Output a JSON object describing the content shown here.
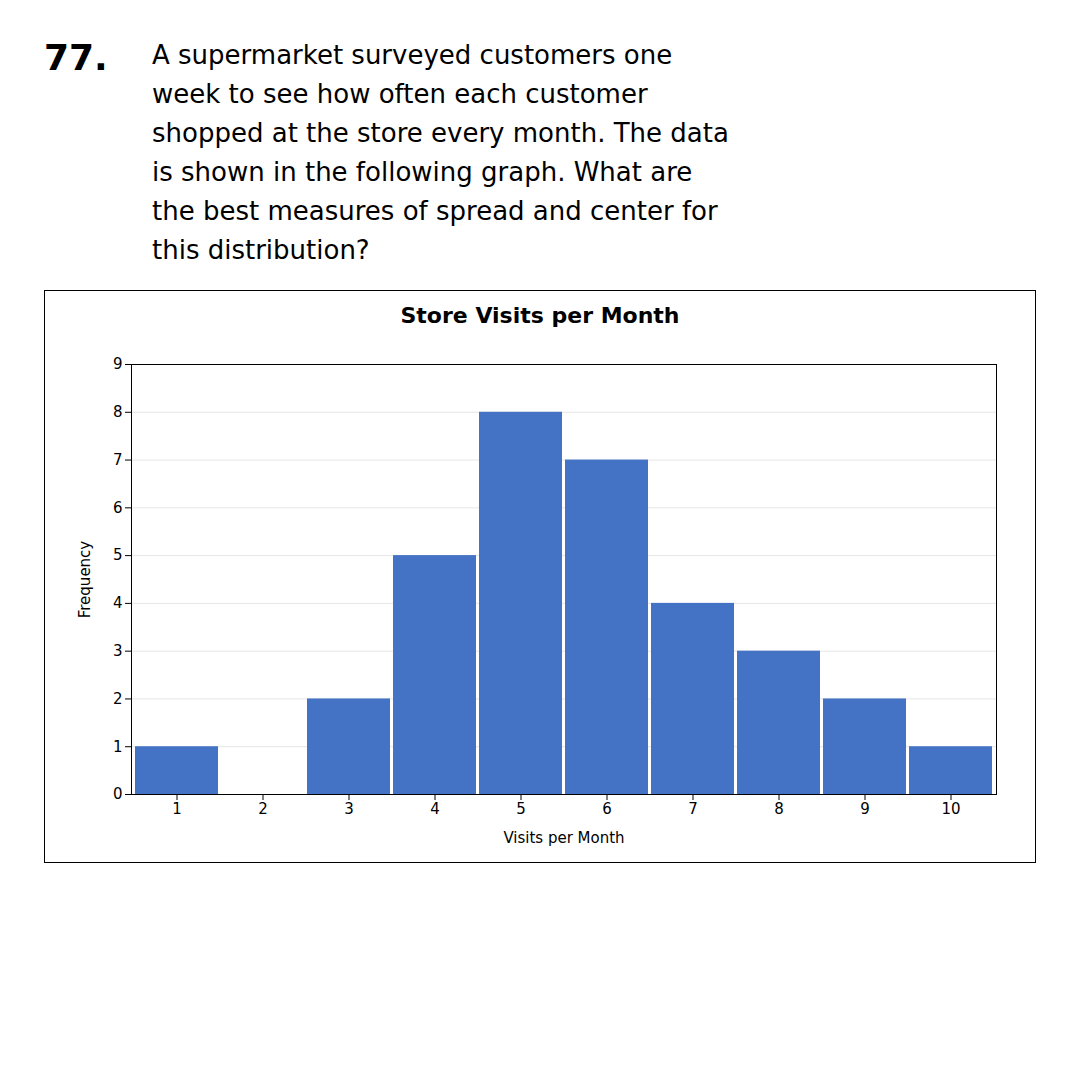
{
  "annotations": [
    "77.",
    "A supermarket surveyed customers one\nweek to see how often each customer\nshopped at the store every month. The data\nis shown in the following graph. What are\nthe best measures of spread and center for\nthis distribution?"
  ],
  "chart_data": {
    "type": "bar",
    "title": "Store Visits per Month",
    "xlabel": "Visits per Month",
    "ylabel": "Frequency",
    "categories": [
      "1",
      "2",
      "3",
      "4",
      "5",
      "6",
      "7",
      "8",
      "9",
      "10"
    ],
    "values": [
      1,
      0,
      2,
      5,
      8,
      7,
      4,
      3,
      2,
      1
    ],
    "color": "#4472C4",
    "ylim": [
      0,
      9
    ],
    "yticks": [
      0,
      1,
      2,
      3,
      4,
      5,
      6,
      7,
      8,
      9
    ],
    "grid": true
  }
}
